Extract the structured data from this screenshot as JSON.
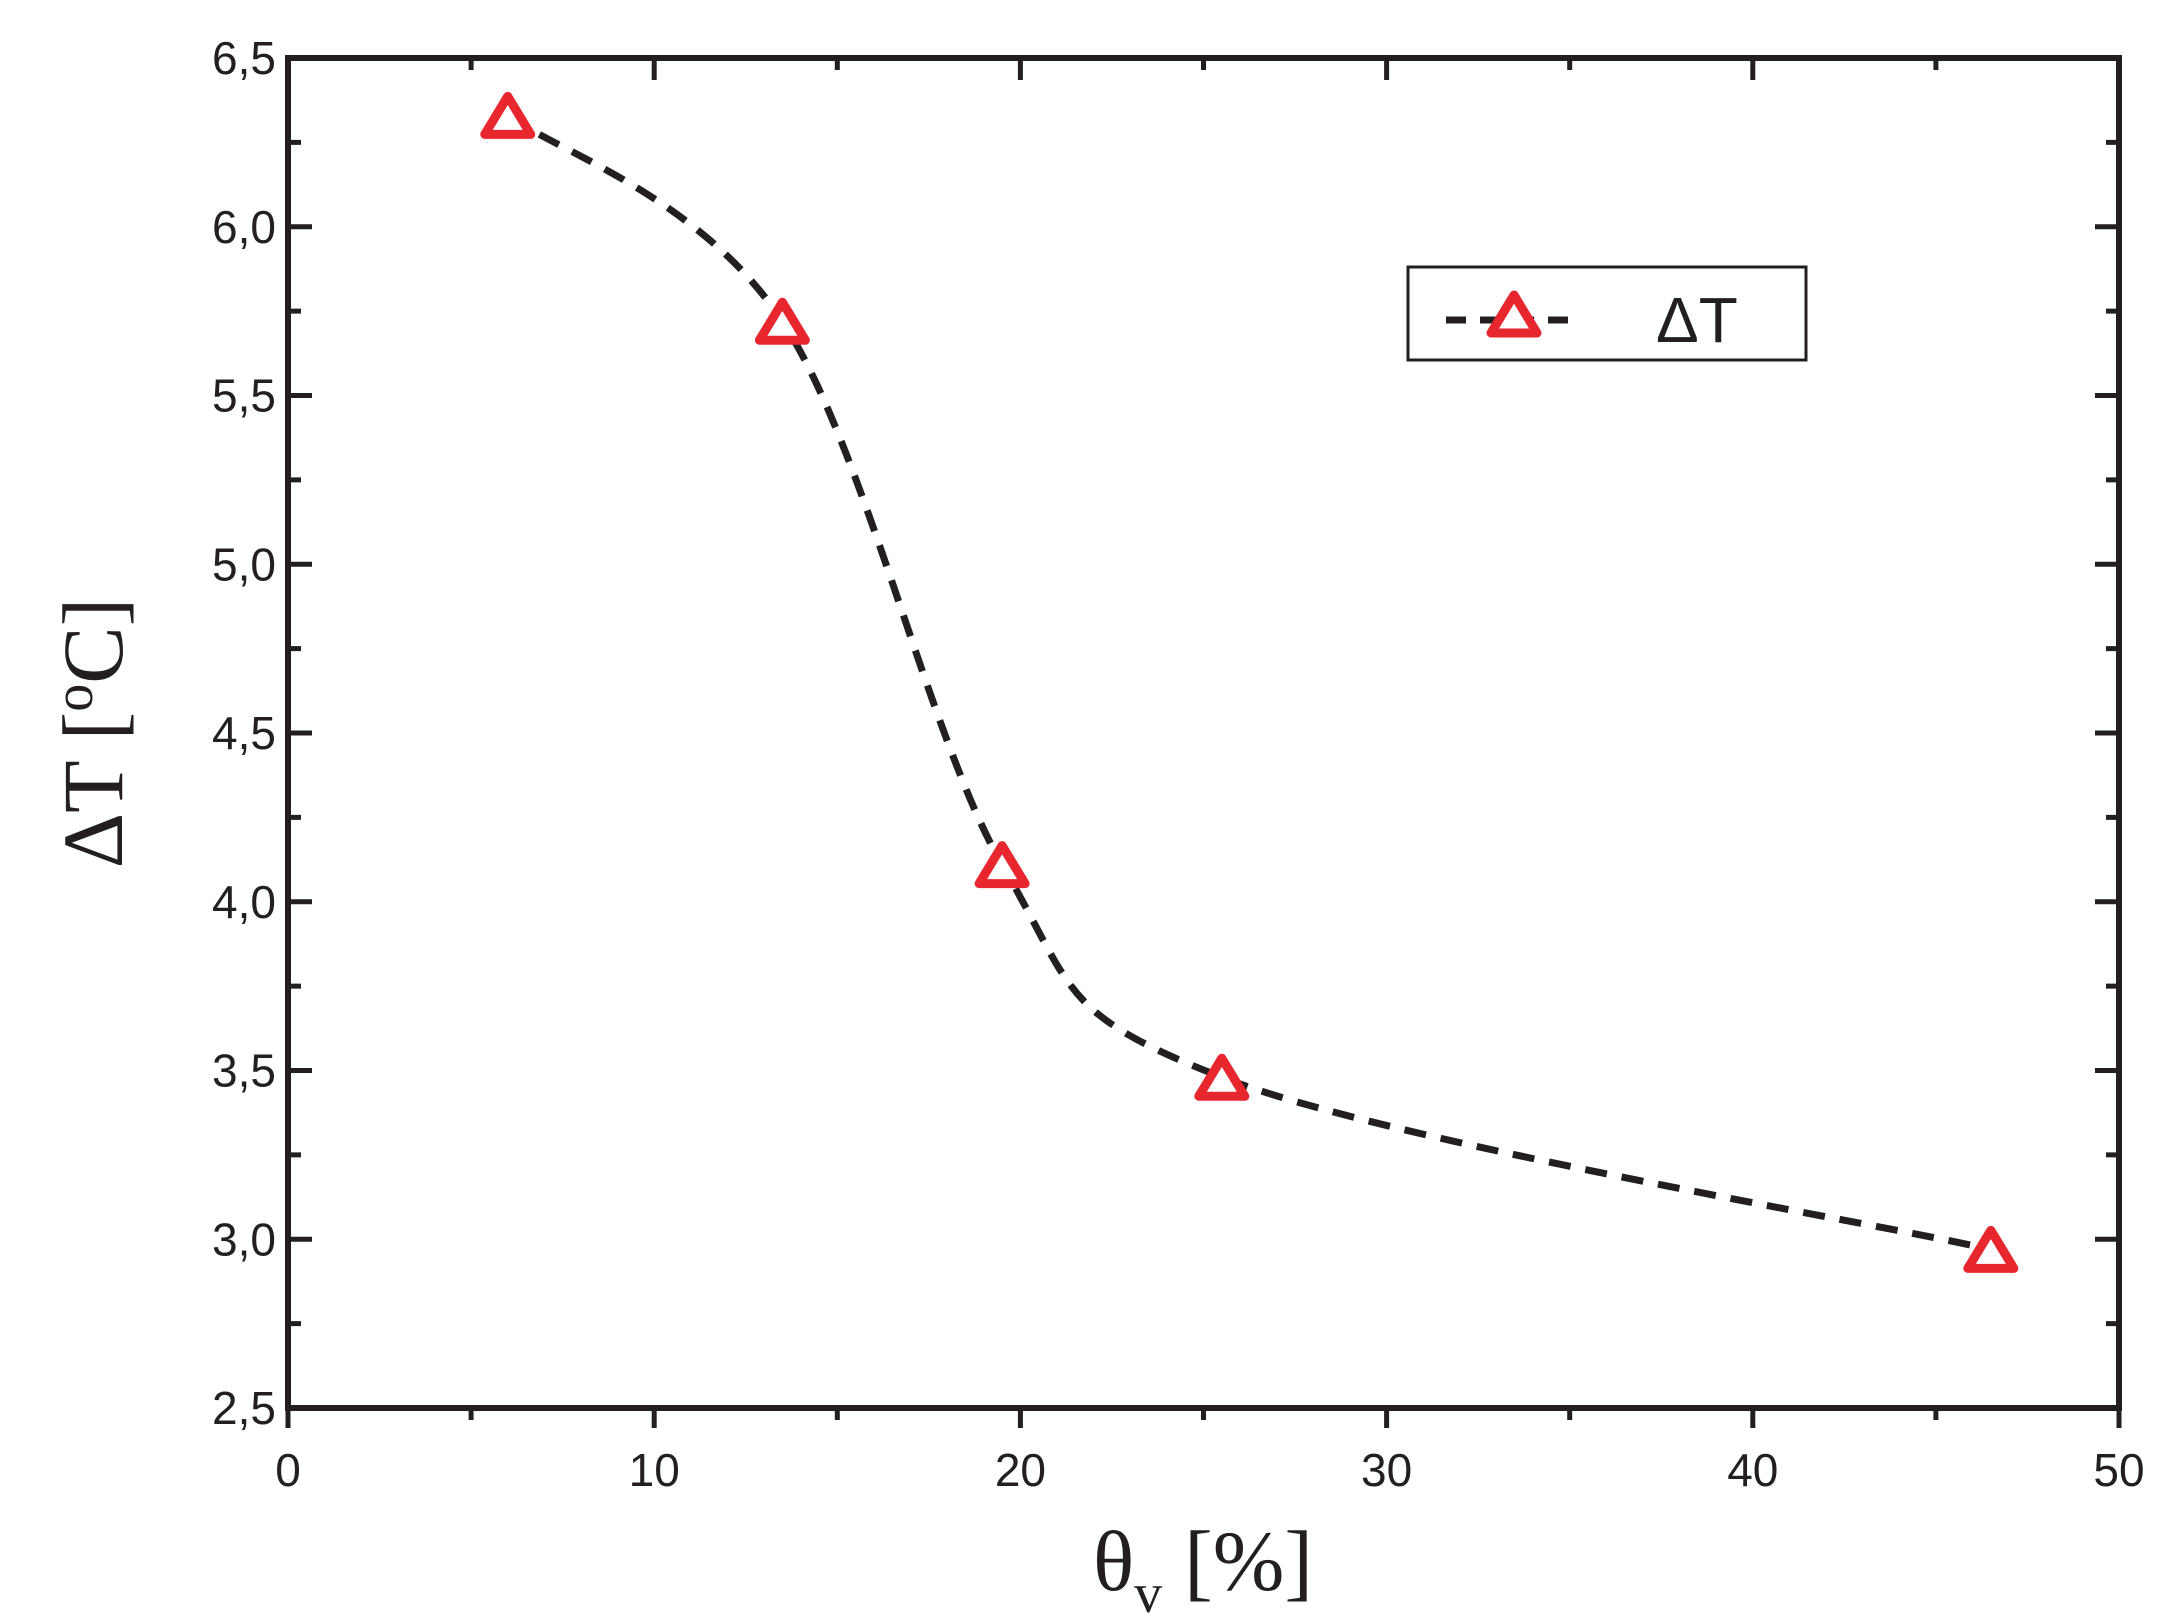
{
  "chart_data": {
    "type": "line",
    "x": [
      6.0,
      13.5,
      19.5,
      25.5,
      46.5
    ],
    "series": [
      {
        "name": "ΔT",
        "values": [
          6.33,
          5.72,
          4.11,
          3.48,
          2.97
        ],
        "line_style": "dashed",
        "line_color": "#231f20",
        "marker": "open-triangle",
        "marker_color": "#e8262d"
      }
    ],
    "xlabel_main": "θ",
    "xlabel_sub": "v",
    "xlabel_unit": "[%]",
    "ylabel_main": "ΔT [",
    "ylabel_sup": "o",
    "ylabel_unit": "C]",
    "xlim": [
      0,
      50
    ],
    "ylim": [
      2.5,
      6.5
    ],
    "x_ticks": [
      0,
      10,
      20,
      30,
      40,
      50
    ],
    "x_tick_labels": [
      "0",
      "10",
      "20",
      "30",
      "40",
      "50"
    ],
    "y_ticks": [
      2.5,
      3.0,
      3.5,
      4.0,
      4.5,
      5.0,
      5.5,
      6.0,
      6.5
    ],
    "y_tick_labels": [
      "2,5",
      "3,0",
      "3,5",
      "4,0",
      "4,5",
      "5,0",
      "5,5",
      "6,0",
      "6,5"
    ],
    "grid": false,
    "legend_position": "top-right"
  }
}
